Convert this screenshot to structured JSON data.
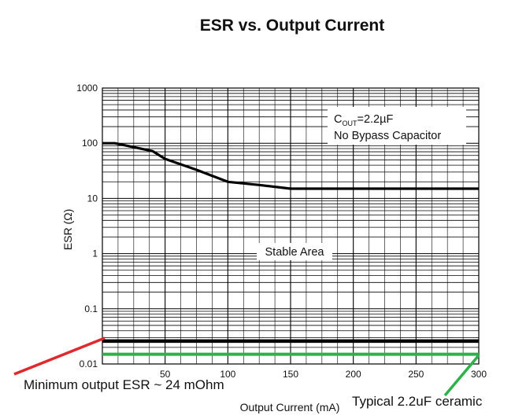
{
  "chart_data": {
    "type": "line",
    "title": "ESR vs. Output Current",
    "xlabel": "Output Current (mA)",
    "ylabel": "ESR (Ω)",
    "xlim": [
      0,
      300
    ],
    "ylim": [
      0.01,
      1000
    ],
    "yscale": "log",
    "grid": true,
    "x_ticks": [
      50,
      100,
      150,
      200,
      250,
      300
    ],
    "x_tick_labels": [
      "50",
      "100",
      "150",
      "200",
      "250",
      "300"
    ],
    "y_ticks": [
      0.01,
      0.1,
      1,
      10,
      100,
      1000
    ],
    "y_tick_labels": [
      "0.01",
      "0.1",
      "1",
      "10",
      "100",
      "1000"
    ],
    "series": [
      {
        "name": "",
        "role": "upper stability boundary",
        "color": "#000000",
        "x": [
          0,
          10,
          25,
          40,
          50,
          75,
          100,
          125,
          150,
          200,
          250,
          300
        ],
        "y": [
          100,
          100,
          85,
          72,
          52,
          33,
          20,
          17.5,
          15,
          15,
          15,
          15
        ]
      },
      {
        "name": "",
        "role": "lower stability boundary",
        "color": "#000000",
        "x": [
          0,
          300
        ],
        "y": [
          0.026,
          0.026
        ]
      }
    ],
    "annotations": {
      "cout_main": "C",
      "cout_sub": "OUT",
      "cout_value": "=2.2µF",
      "bypass": "No Bypass Capacitor",
      "stable_area": "Stable Area"
    },
    "overlays": {
      "minimum_esr": {
        "text": "Minimum output ESR ~ 24 mOhm",
        "line_color": "#e0282e"
      },
      "typical_ceramic": {
        "text": "Typical 2.2uF ceramic",
        "line_color": "#2db24a",
        "y": 0.015
      }
    }
  }
}
